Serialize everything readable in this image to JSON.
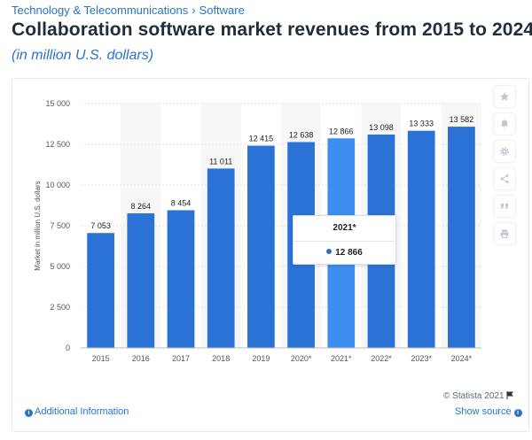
{
  "breadcrumb": {
    "category": "Technology & Telecommunications",
    "separator": "›",
    "subcategory": "Software"
  },
  "title": "Collaboration software market revenues from 2015 to 2024",
  "subtitle": "(in million U.S. dollars)",
  "colors": {
    "bar": "#2b72d7",
    "bar_highlight": "#3d8ef0",
    "band": "#f7f7f7",
    "link": "#2a72c9"
  },
  "sidebar_icons": [
    "star-icon",
    "bell-icon",
    "gear-icon",
    "share-icon",
    "quote-icon",
    "print-icon"
  ],
  "chart_data": {
    "type": "bar",
    "categories": [
      "2015",
      "2016",
      "2017",
      "2018",
      "2019",
      "2020*",
      "2021*",
      "2022*",
      "2023*",
      "2024*"
    ],
    "values": [
      7053,
      8264,
      8454,
      11011,
      12415,
      12638,
      12866,
      13098,
      13333,
      13582
    ],
    "value_labels": [
      "7 053",
      "8 264",
      "8 454",
      "11 011",
      "12 415",
      "12 638",
      "12 866",
      "13 098",
      "13 333",
      "13 582"
    ],
    "ylabel": "Market in million U.S. dollars",
    "ylim": [
      0,
      15000
    ],
    "yticks": [
      0,
      2500,
      5000,
      7500,
      10000,
      12500,
      15000
    ],
    "ytick_labels": [
      "0",
      "2 500",
      "5 000",
      "7 500",
      "10 000",
      "12 500",
      "15 000"
    ],
    "grid": true,
    "highlighted_category": "2021*"
  },
  "tooltip": {
    "header": "2021*",
    "value": "12 866"
  },
  "copyright": "© Statista 2021",
  "footer": {
    "additional_info": "Additional Information",
    "show_source": "Show source"
  }
}
